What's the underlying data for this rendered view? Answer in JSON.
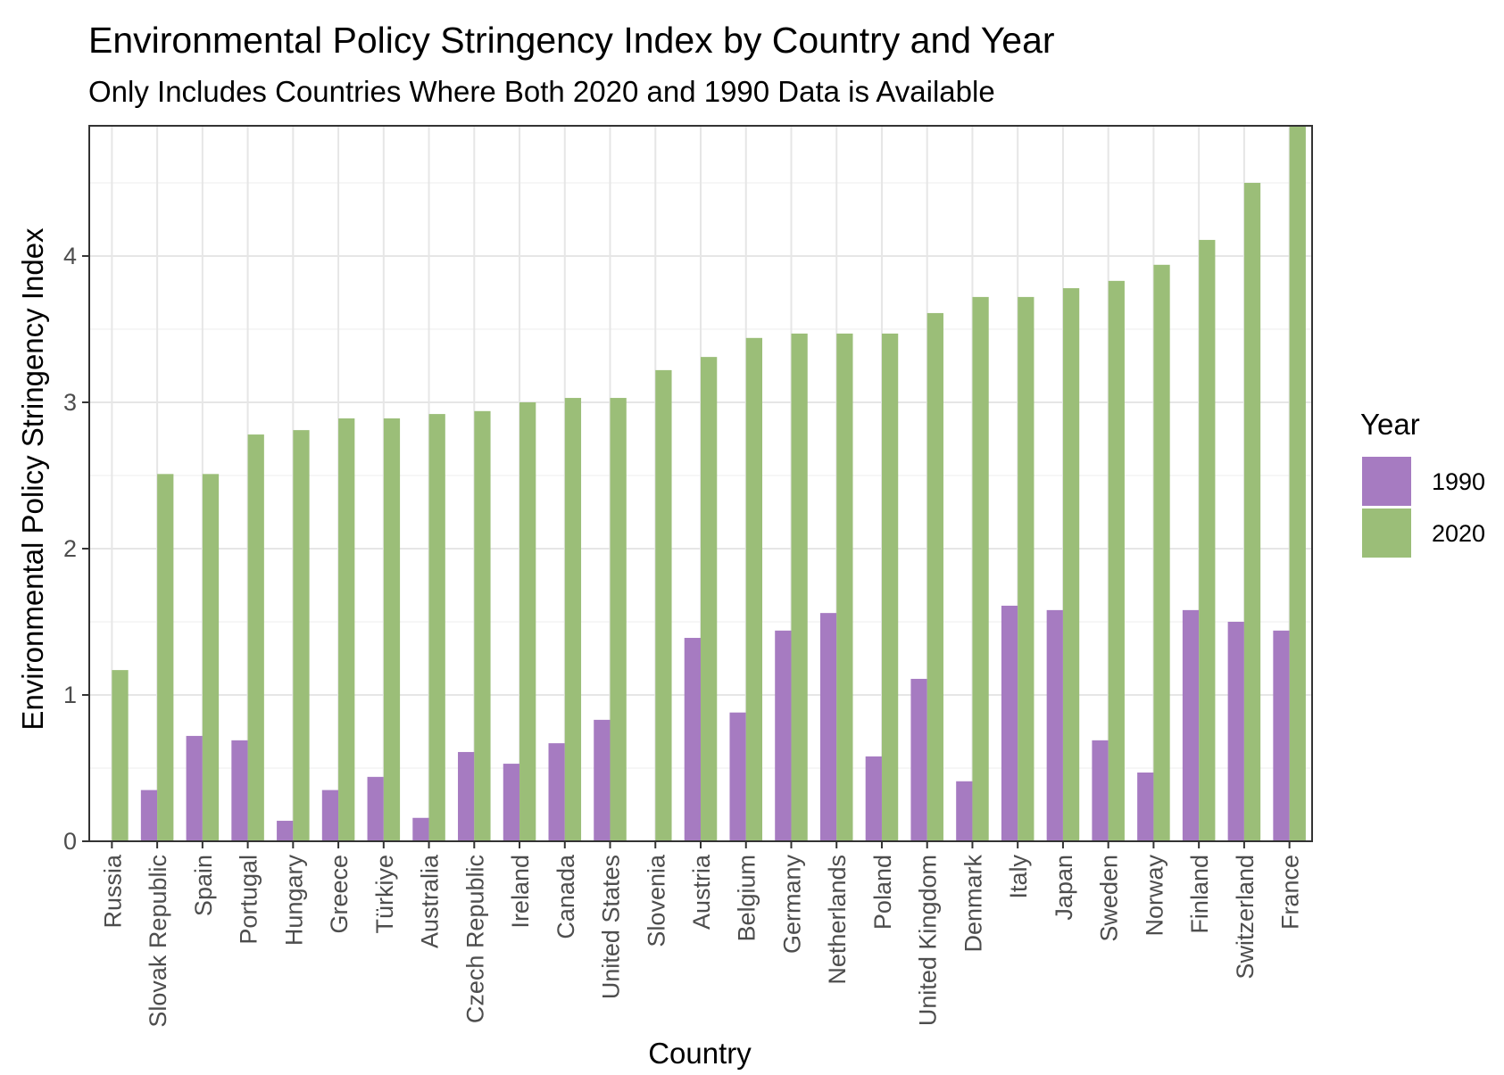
{
  "chart_data": {
    "type": "bar",
    "title": "Environmental Policy Stringency Index by Country and Year",
    "subtitle": "Only Includes Countries Where Both 2020 and 1990 Data is Available",
    "xlabel": "Country",
    "ylabel": "Environmental Policy Stringency Index",
    "ylim": [
      0,
      4.89
    ],
    "yticks": [
      "0",
      "1",
      "2",
      "3",
      "4"
    ],
    "grid": true,
    "legend": {
      "title": "Year",
      "position": "right"
    },
    "categories": [
      "Russia",
      "Slovak Republic",
      "Spain",
      "Portugal",
      "Hungary",
      "Greece",
      "Türkiye",
      "Australia",
      "Czech Republic",
      "Ireland",
      "Canada",
      "United States",
      "Slovenia",
      "Austria",
      "Belgium",
      "Germany",
      "Netherlands",
      "Poland",
      "United Kingdom",
      "Denmark",
      "Italy",
      "Japan",
      "Sweden",
      "Norway",
      "Finland",
      "Switzerland",
      "France"
    ],
    "series": [
      {
        "name": "1990",
        "color": "#a67bc1",
        "values": [
          0,
          0.35,
          0.72,
          0.69,
          0.14,
          0.35,
          0.44,
          0.16,
          0.61,
          0.53,
          0.67,
          0.83,
          0,
          1.39,
          0.88,
          1.44,
          1.56,
          0.58,
          1.11,
          0.41,
          1.61,
          1.58,
          0.69,
          0.47,
          1.58,
          1.5,
          1.44
        ]
      },
      {
        "name": "2020",
        "color": "#9bbe78",
        "values": [
          1.17,
          2.51,
          2.51,
          2.78,
          2.81,
          2.89,
          2.89,
          2.92,
          2.94,
          3.0,
          3.03,
          3.03,
          3.22,
          3.31,
          3.44,
          3.47,
          3.47,
          3.47,
          3.61,
          3.72,
          3.72,
          3.78,
          3.83,
          3.94,
          4.11,
          4.5,
          4.89
        ]
      }
    ]
  }
}
